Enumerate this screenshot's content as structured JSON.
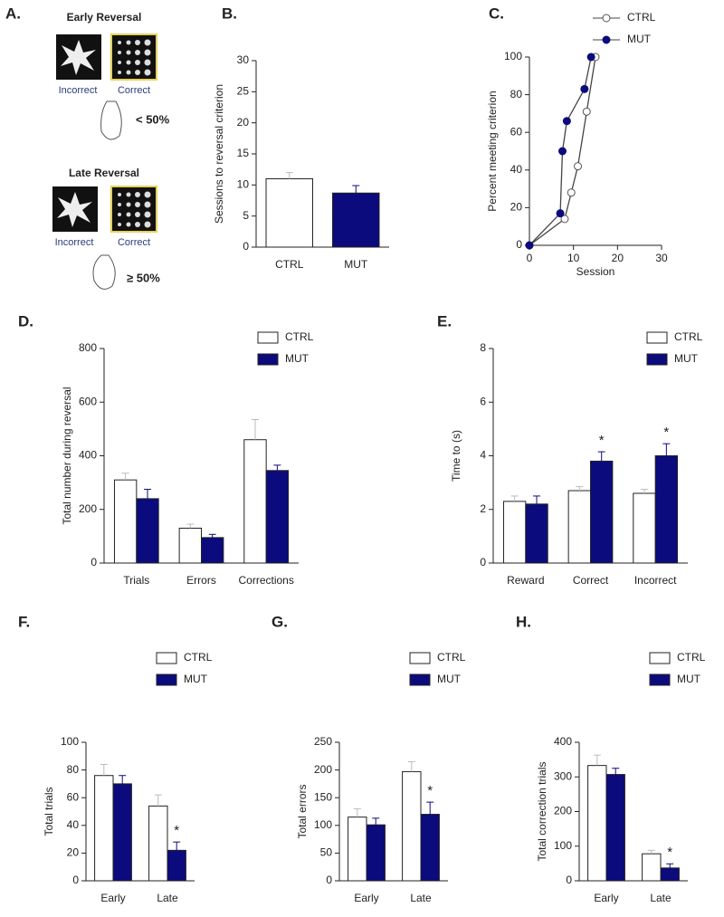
{
  "panel_a": {
    "label": "A.",
    "early": {
      "title": "Early Reversal",
      "incorrect": "Incorrect",
      "correct": "Correct",
      "criterion": "< 50%"
    },
    "late": {
      "title": "Late Reversal",
      "incorrect": "Incorrect",
      "correct": "Correct",
      "criterion": "≥ 50%"
    }
  },
  "chart_data": [
    {
      "type": "bar",
      "label": "B.",
      "ylabel": "Sessions to reversal criterion",
      "categories": [
        "CTRL",
        "MUT"
      ],
      "values": [
        11,
        8.7
      ],
      "errors": [
        1,
        1.2
      ],
      "colors": [
        "#ffffff",
        "#0b0b7d"
      ],
      "ylim": [
        0,
        30
      ],
      "yticks": [
        0,
        5,
        10,
        15,
        20,
        25,
        30
      ]
    },
    {
      "type": "line",
      "label": "C.",
      "xlabel": "Session",
      "ylabel": "Percent meeting criterion",
      "line_color": "#444444",
      "legend": "top-right",
      "series": [
        {
          "name": "CTRL",
          "color": "#ffffff",
          "x": [
            0,
            8,
            9.5,
            11,
            13,
            15
          ],
          "values": [
            0,
            14,
            28,
            42,
            71,
            100
          ]
        },
        {
          "name": "MUT",
          "color": "#0b0b7d",
          "x": [
            0,
            7,
            7.5,
            8.5,
            12.5,
            14
          ],
          "values": [
            0,
            17,
            50,
            66,
            83,
            100
          ]
        }
      ],
      "xlim": [
        0,
        30
      ],
      "xticks": [
        0,
        10,
        20,
        30
      ],
      "ylim": [
        0,
        100
      ],
      "yticks": [
        0,
        20,
        40,
        60,
        80,
        100
      ]
    },
    {
      "type": "bar",
      "label": "D.",
      "ylabel": "Total number during reversal",
      "legend": "top-right",
      "categories": [
        "Trials",
        "Errors",
        "Corrections"
      ],
      "series": [
        {
          "name": "CTRL",
          "color": "#ffffff",
          "values": [
            310,
            130,
            460
          ],
          "errors": [
            25,
            15,
            75
          ]
        },
        {
          "name": "MUT",
          "color": "#0b0b7d",
          "values": [
            240,
            95,
            345
          ],
          "errors": [
            35,
            12,
            20
          ]
        }
      ],
      "ylim": [
        0,
        800
      ],
      "yticks": [
        0,
        200,
        400,
        600,
        800
      ]
    },
    {
      "type": "bar",
      "label": "E.",
      "ylabel": "Time to (s)",
      "legend": "top-right",
      "categories": [
        "Reward",
        "Correct",
        "Incorrect"
      ],
      "series": [
        {
          "name": "CTRL",
          "color": "#ffffff",
          "values": [
            2.3,
            2.7,
            2.6
          ],
          "errors": [
            0.2,
            0.15,
            0.15
          ]
        },
        {
          "name": "MUT",
          "color": "#0b0b7d",
          "values": [
            2.2,
            3.8,
            4.0
          ],
          "errors": [
            0.3,
            0.35,
            0.45
          ],
          "annotations": [
            null,
            "*",
            "*"
          ]
        }
      ],
      "ylim": [
        0,
        8
      ],
      "yticks": [
        0,
        2,
        4,
        6,
        8
      ]
    },
    {
      "type": "bar",
      "label": "F.",
      "ylabel": "Total trials",
      "legend": "top-right",
      "categories": [
        "Early",
        "Late"
      ],
      "series": [
        {
          "name": "CTRL",
          "color": "#ffffff",
          "values": [
            76,
            54
          ],
          "errors": [
            8,
            8
          ]
        },
        {
          "name": "MUT",
          "color": "#0b0b7d",
          "values": [
            70,
            22
          ],
          "errors": [
            6,
            6
          ],
          "annotations": [
            null,
            "*"
          ]
        }
      ],
      "ylim": [
        0,
        100
      ],
      "yticks": [
        0,
        20,
        40,
        60,
        80,
        100
      ]
    },
    {
      "type": "bar",
      "label": "G.",
      "ylabel": "Total errors",
      "legend": "top-right",
      "categories": [
        "Early",
        "Late"
      ],
      "series": [
        {
          "name": "CTRL",
          "color": "#ffffff",
          "values": [
            115,
            197
          ],
          "errors": [
            15,
            18
          ]
        },
        {
          "name": "MUT",
          "color": "#0b0b7d",
          "values": [
            101,
            120
          ],
          "errors": [
            12,
            22
          ],
          "annotations": [
            null,
            "*"
          ]
        }
      ],
      "ylim": [
        0,
        250
      ],
      "yticks": [
        0,
        50,
        100,
        150,
        200,
        250
      ]
    },
    {
      "type": "bar",
      "label": "H.",
      "ylabel": "Total correction trials",
      "legend": "top-right",
      "categories": [
        "Early",
        "Late"
      ],
      "series": [
        {
          "name": "CTRL",
          "color": "#ffffff",
          "values": [
            333,
            78
          ],
          "errors": [
            30,
            10
          ]
        },
        {
          "name": "MUT",
          "color": "#0b0b7d",
          "values": [
            307,
            37
          ],
          "errors": [
            18,
            12
          ],
          "annotations": [
            null,
            "*"
          ]
        }
      ],
      "ylim": [
        0,
        400
      ],
      "yticks": [
        0,
        100,
        200,
        300,
        400
      ]
    }
  ]
}
